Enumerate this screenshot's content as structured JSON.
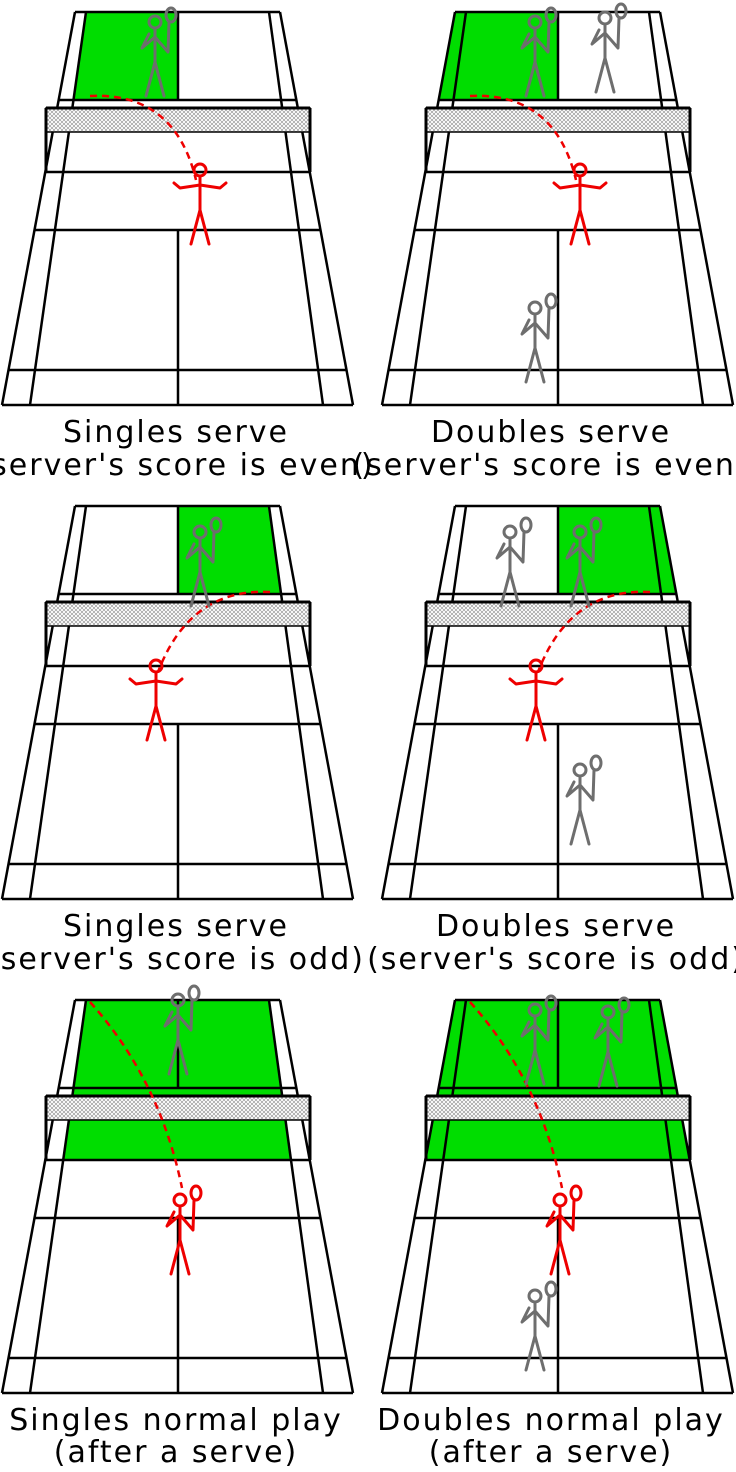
{
  "colors": {
    "background": "#ffffff",
    "court_line": "#000000",
    "highlight": "#00dd00",
    "server": "#ee0000",
    "shuttle_path": "#ee0000",
    "other_player": "#6e6e6e",
    "net": "#808080"
  },
  "panels": [
    {
      "caption_line1": "Singles serve",
      "caption_line2": "(server's score is even)",
      "mode": "singles",
      "highlight": "right-service-box",
      "server": "right",
      "players": [
        "opponent-right"
      ]
    },
    {
      "caption_line1": "Doubles serve",
      "caption_line2": "(server's score is even)",
      "mode": "doubles",
      "highlight": "right-service-box",
      "server": "right",
      "players": [
        "opponent-right",
        "opponent-left",
        "partner-back"
      ]
    },
    {
      "caption_line1": "Singles serve",
      "caption_line2": "(server's score is odd)",
      "mode": "singles",
      "highlight": "left-service-box",
      "server": "left",
      "players": [
        "opponent-left"
      ]
    },
    {
      "caption_line1": "Doubles serve",
      "caption_line2": "(server's score is odd)",
      "mode": "doubles",
      "highlight": "left-service-box",
      "server": "left",
      "players": [
        "opponent-left",
        "opponent-right",
        "partner-back"
      ]
    },
    {
      "caption_line1": "Singles normal play",
      "caption_line2": "(after a serve)",
      "mode": "singles",
      "highlight": "whole-half",
      "server": "centre",
      "players": [
        "opponent-centre"
      ]
    },
    {
      "caption_line1": "Doubles normal play",
      "caption_line2": "(after a serve)",
      "mode": "doubles",
      "highlight": "whole-half",
      "server": "centre",
      "players": [
        "opponent-right",
        "opponent-left",
        "partner-back"
      ]
    }
  ]
}
